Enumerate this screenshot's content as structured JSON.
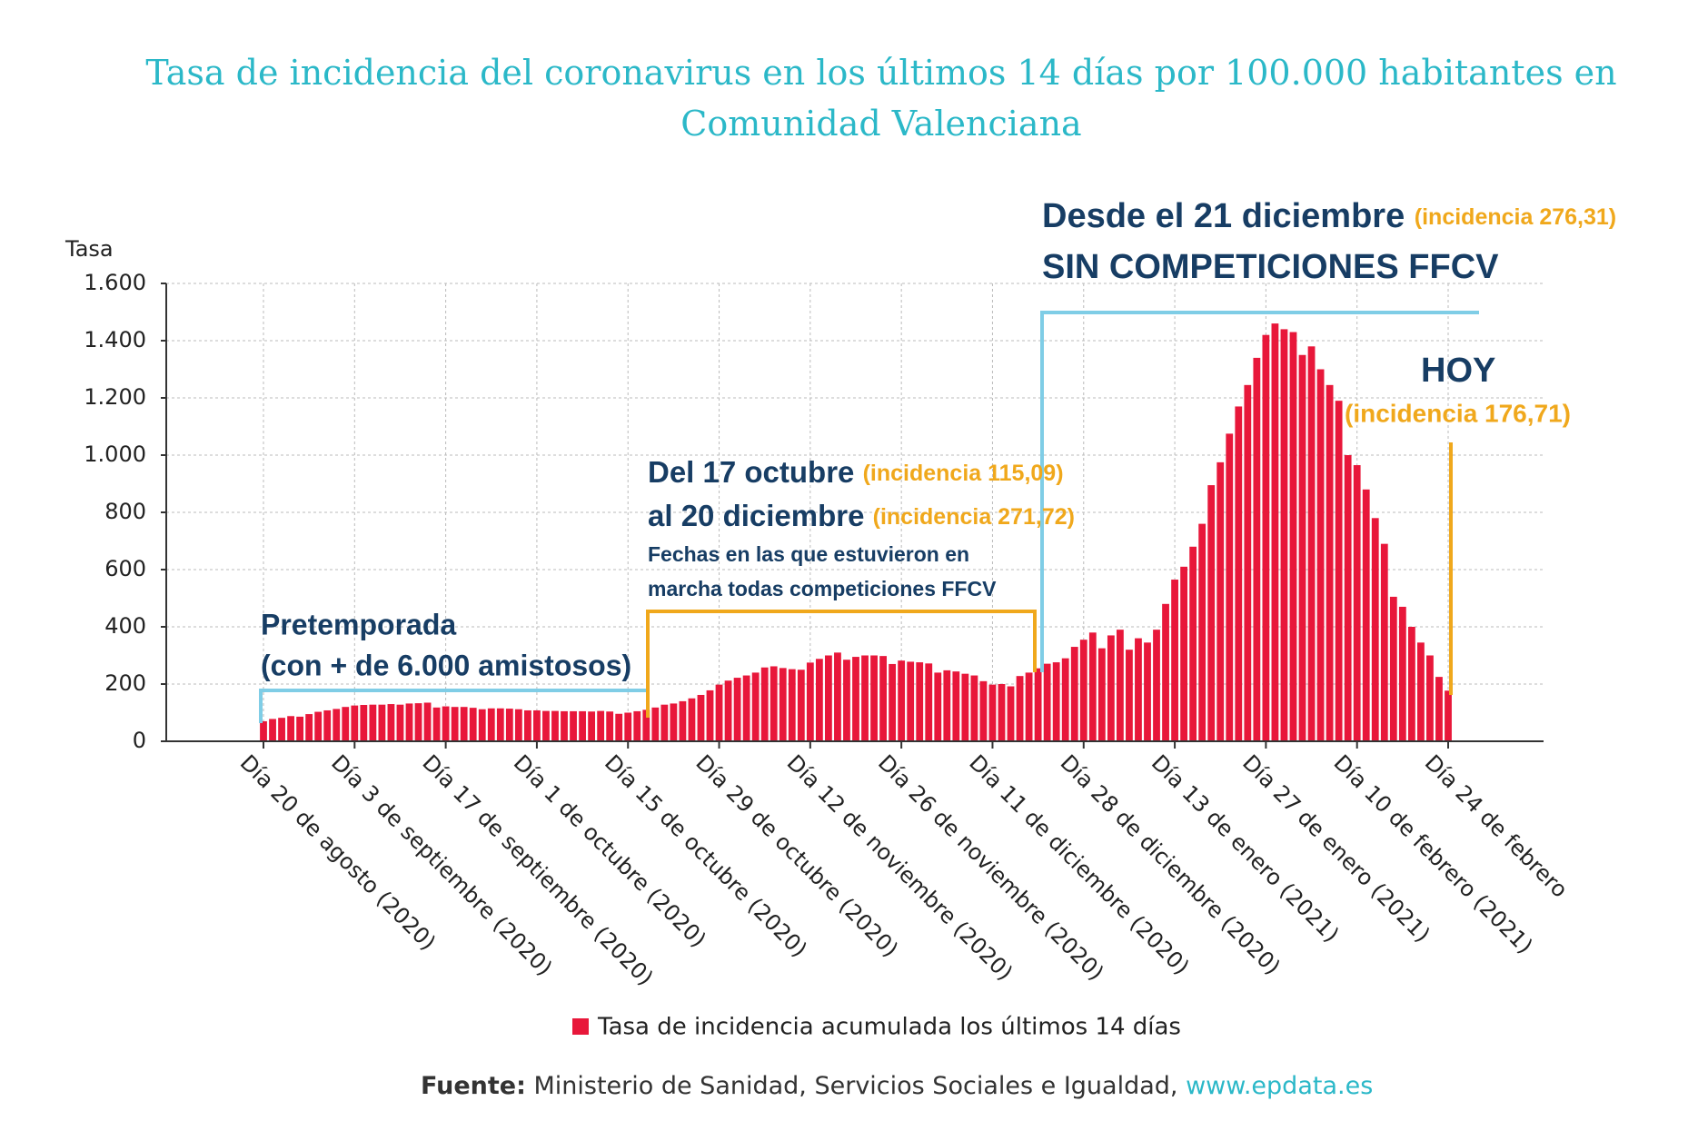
{
  "chart_data": {
    "type": "bar",
    "title": "Tasa de incidencia del coronavirus en los últimos 14 días por 100.000 habitantes en Comunidad Valenciana",
    "y_label": "Tasa",
    "legend": "Tasa de incidencia acumulada los últimos 14 días",
    "color": "#e8173a",
    "grid": true,
    "ylim": [
      0,
      1600
    ],
    "yticks": [
      0,
      200,
      400,
      600,
      800,
      {
        "value": 1000,
        "label": "1.000"
      },
      {
        "value": 1200,
        "label": "1.200"
      },
      {
        "value": 1400,
        "label": "1.400"
      },
      {
        "value": 1600,
        "label": "1.600"
      }
    ],
    "categories": [
      "Día 20 de agosto (2020)",
      null,
      null,
      null,
      null,
      null,
      null,
      null,
      null,
      null,
      "Día 3 de septiembre (2020)",
      null,
      null,
      null,
      null,
      null,
      null,
      null,
      null,
      null,
      "Día 17 de septiembre (2020)",
      null,
      null,
      null,
      null,
      null,
      null,
      null,
      null,
      null,
      "Día 1 de octubre (2020)",
      null,
      null,
      null,
      null,
      null,
      null,
      null,
      null,
      null,
      "Día 15 de octubre (2020)",
      null,
      null,
      null,
      null,
      null,
      null,
      null,
      null,
      null,
      "Día 29 de octubre (2020)",
      null,
      null,
      null,
      null,
      null,
      null,
      null,
      null,
      null,
      "Día 12 de noviembre (2020)",
      null,
      null,
      null,
      null,
      null,
      null,
      null,
      null,
      null,
      "Día 26 de noviembre (2020)",
      null,
      null,
      null,
      null,
      null,
      null,
      null,
      null,
      null,
      "Día 11 de diciembre (2020)",
      null,
      null,
      null,
      null,
      null,
      null,
      null,
      null,
      null,
      "Día 28 de diciembre (2020)",
      null,
      null,
      null,
      null,
      null,
      null,
      null,
      null,
      null,
      "Día 13 de enero (2021)",
      null,
      null,
      null,
      null,
      null,
      null,
      null,
      null,
      null,
      "Día 27 de enero (2021)",
      null,
      null,
      null,
      null,
      null,
      null,
      null,
      null,
      null,
      "Día 10 de febrero (2021)",
      null,
      null,
      null,
      null,
      null,
      null,
      null,
      null,
      null,
      "Día 24 de febrero"
    ],
    "values": [
      70,
      78,
      82,
      88,
      86,
      95,
      103,
      108,
      113,
      120,
      125,
      127,
      128,
      128,
      130,
      128,
      132,
      133,
      135,
      118,
      122,
      120,
      120,
      117,
      112,
      115,
      115,
      114,
      112,
      108,
      108,
      106,
      106,
      105,
      105,
      105,
      104,
      106,
      104,
      96,
      100,
      105,
      110,
      118,
      128,
      132,
      140,
      150,
      162,
      178,
      198,
      212,
      222,
      230,
      240,
      258,
      262,
      256,
      252,
      250,
      275,
      288,
      300,
      310,
      285,
      295,
      300,
      300,
      298,
      270,
      282,
      278,
      276,
      272,
      240,
      248,
      244,
      236,
      230,
      210,
      198,
      200,
      192,
      228,
      240,
      255,
      271,
      276,
      290,
      330,
      355,
      380,
      325,
      370,
      390,
      320,
      360,
      345,
      390,
      480,
      565,
      610,
      680,
      760,
      895,
      975,
      1075,
      1170,
      1245,
      1340,
      1420,
      1460,
      1440,
      1430,
      1350,
      1380,
      1300,
      1245,
      1190,
      1000,
      965,
      880,
      780,
      690,
      505,
      470,
      400,
      345,
      300,
      225,
      177
    ],
    "annotations": {
      "pre_1": "Pretemporada",
      "pre_2": "(con + de 6.000 amistosos)",
      "comp_1": "Del 17 octubre",
      "comp_1_inc": "(incidencia 115,09)",
      "comp_2": "al 20 diciembre",
      "comp_2_inc": "(incidencia 271,72)",
      "comp_3": "Fechas en las que estuvieron en",
      "comp_4": "marcha todas competiciones FFCV",
      "stop_1": "Desde el 21 diciembre",
      "stop_1_inc": "(incidencia 276,31)",
      "stop_2": "SIN COMPETICIONES FFCV",
      "today": "HOY",
      "today_inc": "(incidencia 176,71)"
    },
    "source_label": "Fuente:",
    "source_text": "Ministerio de Sanidad, Servicios Sociales e Igualdad,",
    "source_link": "www.epdata.es"
  }
}
